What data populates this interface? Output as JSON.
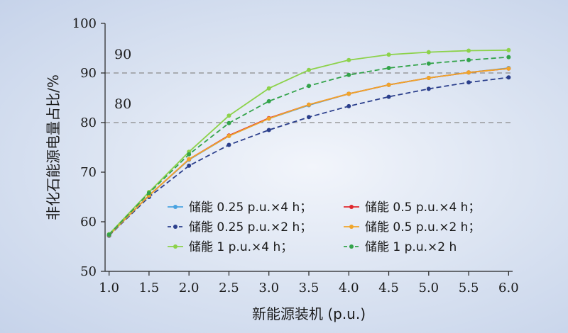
{
  "chart_data": {
    "type": "line",
    "xlabel": "新能源装机 (p.u.)",
    "ylabel": "非化石能源电量占比/%",
    "xlim": [
      0.95,
      6.05
    ],
    "ylim": [
      50,
      100
    ],
    "x_ticks": [
      "1.0",
      "1.5",
      "2.0",
      "2.5",
      "3.0",
      "3.5",
      "4.0",
      "4.5",
      "5.0",
      "5.5",
      "6.0"
    ],
    "y_ticks": [
      "50",
      "60",
      "70",
      "80",
      "90",
      "100"
    ],
    "grid": false,
    "legend_position": "bottom-right",
    "reference_lines": [
      {
        "y": 90,
        "label": "90"
      },
      {
        "y": 80,
        "label": "80"
      }
    ],
    "x": [
      1.0,
      1.5,
      2.0,
      2.5,
      3.0,
      3.5,
      4.0,
      4.5,
      5.0,
      5.5,
      6.0
    ],
    "series": [
      {
        "name": "储能 0.25 p.u.×4 h；",
        "color": "#4aa3e0",
        "dash": "solid",
        "values": [
          57.3,
          65.3,
          72.5,
          77.3,
          80.8,
          83.5,
          85.8,
          87.6,
          89.0,
          90.1,
          91.0
        ]
      },
      {
        "name": "储能 0.5 p.u.×4 h；",
        "color": "#e0282e",
        "dash": "solid",
        "values": [
          57.3,
          65.3,
          72.6,
          77.4,
          80.9,
          83.6,
          85.8,
          87.6,
          89.0,
          90.1,
          90.9
        ]
      },
      {
        "name": "储能 0.25 p.u.×2 h；",
        "color": "#2b3f8c",
        "dash": "dashed",
        "values": [
          57.2,
          65.0,
          71.3,
          75.5,
          78.5,
          81.1,
          83.3,
          85.2,
          86.8,
          88.1,
          89.1
        ]
      },
      {
        "name": "储能 0.5 p.u.×2 h；",
        "color": "#f0a52a",
        "dash": "solid",
        "values": [
          57.3,
          65.3,
          72.6,
          77.3,
          80.8,
          83.6,
          85.8,
          87.6,
          89.0,
          90.1,
          90.9
        ]
      },
      {
        "name": "储能 1 p.u.×4 h；",
        "color": "#8cd24a",
        "dash": "solid",
        "values": [
          57.5,
          66.0,
          74.1,
          81.4,
          86.9,
          90.6,
          92.6,
          93.7,
          94.2,
          94.5,
          94.6
        ]
      },
      {
        "name": "储能 1 p.u.×2 h",
        "color": "#33a34a",
        "dash": "dashed",
        "values": [
          57.4,
          65.8,
          73.6,
          79.9,
          84.3,
          87.4,
          89.6,
          91.0,
          91.9,
          92.6,
          93.2
        ]
      }
    ]
  }
}
